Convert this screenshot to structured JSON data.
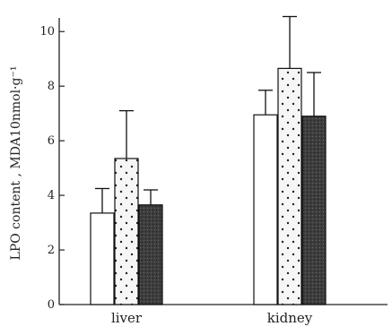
{
  "chart_data": {
    "type": "bar",
    "title": "",
    "xlabel": "",
    "ylabel": "LPO content , MDA10nmol·g⁻¹",
    "ylim": [
      0,
      10.5
    ],
    "y_ticks": [
      0,
      2,
      4,
      6,
      8,
      10
    ],
    "y_tick_labels": [
      "0",
      "2",
      "4",
      "6",
      "8",
      "10"
    ],
    "categories": [
      "liver",
      "kidney"
    ],
    "grid": false,
    "legend": "none",
    "series": [
      {
        "fill": "open",
        "color": "#ffffff",
        "values": [
          3.35,
          6.95
        ],
        "errors": [
          0.9,
          0.9
        ]
      },
      {
        "fill": "dotted",
        "color": "#f4f4f4",
        "values": [
          5.35,
          8.65
        ],
        "errors": [
          1.75,
          1.9
        ]
      },
      {
        "fill": "dark",
        "color": "#3a3a3a",
        "values": [
          3.65,
          6.9
        ],
        "errors": [
          0.55,
          1.6
        ]
      }
    ]
  }
}
